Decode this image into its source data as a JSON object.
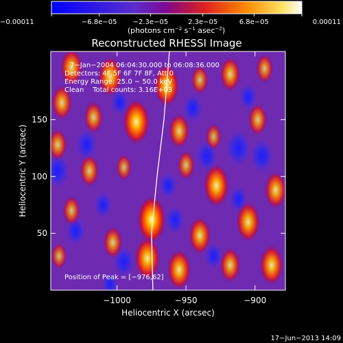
{
  "chart_data": {
    "type": "heatmap",
    "title": "Reconstructed RHESSI Image",
    "xlabel": "Heliocentric X (arcsec)",
    "ylabel": "Heliocentric Y (arcsec)",
    "xlim": [
      -1048,
      -878
    ],
    "ylim": [
      0,
      210
    ],
    "x_ticks": [
      {
        "value": -1000,
        "label": "−1000"
      },
      {
        "value": -950,
        "label": "−950"
      },
      {
        "value": -900,
        "label": "−900"
      }
    ],
    "y_ticks": [
      {
        "value": 50,
        "label": "50"
      },
      {
        "value": 100,
        "label": "100"
      },
      {
        "value": 150,
        "label": "150"
      }
    ],
    "colorbar": {
      "min": -0.00011,
      "max": 0.00011,
      "tick_values": [
        -0.00011,
        -6.8e-05,
        -2.3e-05,
        2.3e-05,
        6.8e-05,
        0.00011
      ],
      "tick_labels": [
        "−0.00011",
        "−6.8e−05",
        "−2.3e−05",
        "2.3e−05",
        "6.8e−05",
        "0.00011"
      ],
      "unit_base": "(photons cm",
      "unit_exp1": "−2",
      "unit_mid": " s",
      "unit_exp2": "−1",
      "unit_mid2": " asec",
      "unit_exp3": "−2",
      "unit_end": ")"
    },
    "info_lines": [
      "7−Jan−2004 06:04:30.000 to 06:08:36.000",
      "Detectors: 4F 5F 6F 7F 8F, Att 0",
      "Energy Range: 25.0 − 50.0 keV",
      "Clean    Total counts: 3.16E+03"
    ],
    "peak_label": "Position of Peak = [−976,62]",
    "peak": {
      "x": -976,
      "y": 62
    },
    "limb_curve": [
      [
        -974,
        0
      ],
      [
        -975,
        50
      ],
      [
        -971,
        100
      ],
      [
        -966,
        150
      ],
      [
        -962,
        210
      ]
    ],
    "sources": [
      {
        "x": -1033,
        "y": 196,
        "value": 7e-05
      },
      {
        "x": -1005,
        "y": 188,
        "value": 8e-05
      },
      {
        "x": -986,
        "y": 148,
        "value": 0.0001
      },
      {
        "x": -1040,
        "y": 165,
        "value": 6e-05
      },
      {
        "x": -1043,
        "y": 128,
        "value": 5e-05
      },
      {
        "x": -1017,
        "y": 152,
        "value": 5e-05
      },
      {
        "x": -1020,
        "y": 105,
        "value": 5e-05
      },
      {
        "x": -995,
        "y": 108,
        "value": 3e-05
      },
      {
        "x": -975,
        "y": 62,
        "value": 0.00011
      },
      {
        "x": -978,
        "y": 28,
        "value": 9e-05
      },
      {
        "x": -1003,
        "y": 42,
        "value": 5e-05
      },
      {
        "x": -1033,
        "y": 70,
        "value": 4e-05
      },
      {
        "x": -1042,
        "y": 30,
        "value": 3e-05
      },
      {
        "x": -964,
        "y": 180,
        "value": 9e-05
      },
      {
        "x": -955,
        "y": 140,
        "value": 6e-05
      },
      {
        "x": -950,
        "y": 110,
        "value": 4e-05
      },
      {
        "x": -928,
        "y": 92,
        "value": 9e-05
      },
      {
        "x": -905,
        "y": 60,
        "value": 8e-05
      },
      {
        "x": -940,
        "y": 48,
        "value": 7e-05
      },
      {
        "x": -955,
        "y": 18,
        "value": 8e-05
      },
      {
        "x": -918,
        "y": 22,
        "value": 6e-05
      },
      {
        "x": -888,
        "y": 22,
        "value": 8e-05
      },
      {
        "x": -885,
        "y": 88,
        "value": 7e-05
      },
      {
        "x": -898,
        "y": 150,
        "value": 5e-05
      },
      {
        "x": -918,
        "y": 190,
        "value": 6e-05
      },
      {
        "x": -893,
        "y": 195,
        "value": 4e-05
      },
      {
        "x": -940,
        "y": 185,
        "value": 4e-05
      },
      {
        "x": -930,
        "y": 135,
        "value": 3e-05
      }
    ],
    "negatives": [
      {
        "x": -1022,
        "y": 128,
        "value": -6e-05
      },
      {
        "x": -1043,
        "y": 105,
        "value": -7e-05
      },
      {
        "x": -1030,
        "y": 52,
        "value": -5e-05
      },
      {
        "x": -1010,
        "y": 75,
        "value": -4e-05
      },
      {
        "x": -995,
        "y": 25,
        "value": -6e-05
      },
      {
        "x": -998,
        "y": 165,
        "value": -4e-05
      },
      {
        "x": -958,
        "y": 62,
        "value": -5e-05
      },
      {
        "x": -945,
        "y": 160,
        "value": -5e-05
      },
      {
        "x": -935,
        "y": 118,
        "value": -6e-05
      },
      {
        "x": -912,
        "y": 125,
        "value": -8e-05
      },
      {
        "x": -895,
        "y": 118,
        "value": -7e-05
      },
      {
        "x": -912,
        "y": 80,
        "value": -4e-05
      },
      {
        "x": -930,
        "y": 30,
        "value": -4e-05
      },
      {
        "x": -905,
        "y": 170,
        "value": -4e-05
      },
      {
        "x": -963,
        "y": 92,
        "value": -4e-05
      },
      {
        "x": -1005,
        "y": 5,
        "value": -3e-05
      }
    ]
  },
  "footer": {
    "timestamp": "17−Jun−2013 14:09"
  }
}
